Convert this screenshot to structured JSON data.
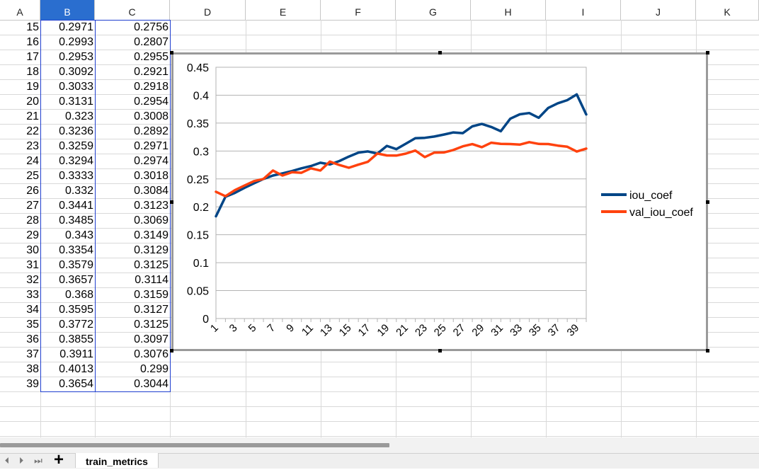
{
  "spreadsheet": {
    "columns": [
      "A",
      "B",
      "C",
      "D",
      "E",
      "F",
      "G",
      "H",
      "I",
      "J",
      "K"
    ],
    "selected_column": "B",
    "rows": [
      {
        "a": "15",
        "b": "0.2971",
        "c": "0.2756"
      },
      {
        "a": "16",
        "b": "0.2993",
        "c": "0.2807"
      },
      {
        "a": "17",
        "b": "0.2953",
        "c": "0.2955"
      },
      {
        "a": "18",
        "b": "0.3092",
        "c": "0.2921"
      },
      {
        "a": "19",
        "b": "0.3033",
        "c": "0.2918"
      },
      {
        "a": "20",
        "b": "0.3131",
        "c": "0.2954"
      },
      {
        "a": "21",
        "b": "0.323",
        "c": "0.3008"
      },
      {
        "a": "22",
        "b": "0.3236",
        "c": "0.2892"
      },
      {
        "a": "23",
        "b": "0.3259",
        "c": "0.2971"
      },
      {
        "a": "24",
        "b": "0.3294",
        "c": "0.2974"
      },
      {
        "a": "25",
        "b": "0.3333",
        "c": "0.3018"
      },
      {
        "a": "26",
        "b": "0.332",
        "c": "0.3084"
      },
      {
        "a": "27",
        "b": "0.3441",
        "c": "0.3123"
      },
      {
        "a": "28",
        "b": "0.3485",
        "c": "0.3069"
      },
      {
        "a": "29",
        "b": "0.343",
        "c": "0.3149"
      },
      {
        "a": "30",
        "b": "0.3354",
        "c": "0.3129"
      },
      {
        "a": "31",
        "b": "0.3579",
        "c": "0.3125"
      },
      {
        "a": "32",
        "b": "0.3657",
        "c": "0.3114"
      },
      {
        "a": "33",
        "b": "0.368",
        "c": "0.3159"
      },
      {
        "a": "34",
        "b": "0.3595",
        "c": "0.3127"
      },
      {
        "a": "35",
        "b": "0.3772",
        "c": "0.3125"
      },
      {
        "a": "36",
        "b": "0.3855",
        "c": "0.3097"
      },
      {
        "a": "37",
        "b": "0.3911",
        "c": "0.3076"
      },
      {
        "a": "38",
        "b": "0.4013",
        "c": "0.299"
      },
      {
        "a": "39",
        "b": "0.3654",
        "c": "0.3044"
      }
    ]
  },
  "sheet_tabs": {
    "active": "train_metrics",
    "add_label": "+",
    "nav_first": "⏴",
    "nav_prev": "⏵",
    "nav_last": "⏭"
  },
  "colors": {
    "selected_header": "#2a6ecf",
    "selection_border": "#1f3fcf",
    "iou_coef": "#004586",
    "val_iou_coef": "#ff420e"
  },
  "chart_data": {
    "type": "line",
    "x": [
      1,
      2,
      3,
      4,
      5,
      6,
      7,
      8,
      9,
      10,
      11,
      12,
      13,
      14,
      15,
      16,
      17,
      18,
      19,
      20,
      21,
      22,
      23,
      24,
      25,
      26,
      27,
      28,
      29,
      30,
      31,
      32,
      33,
      34,
      35,
      36,
      37,
      38,
      39,
      40
    ],
    "x_tick_labels": [
      "1",
      "3",
      "5",
      "7",
      "9",
      "11",
      "13",
      "15",
      "17",
      "19",
      "21",
      "23",
      "25",
      "27",
      "29",
      "31",
      "33",
      "35",
      "37",
      "39"
    ],
    "y_tick_labels": [
      "0",
      "0.05",
      "0.1",
      "0.15",
      "0.2",
      "0.25",
      "0.3",
      "0.35",
      "0.4",
      "0.45"
    ],
    "ylim": [
      0,
      0.45
    ],
    "grid": true,
    "legend_position": "right",
    "series": [
      {
        "name": "iou_coef",
        "color": "#004586",
        "values": [
          0.183,
          0.218,
          0.225,
          0.234,
          0.242,
          0.25,
          0.256,
          0.26,
          0.264,
          0.269,
          0.273,
          0.279,
          0.276,
          0.282,
          0.29,
          0.2971,
          0.2993,
          0.2953,
          0.3092,
          0.3033,
          0.3131,
          0.323,
          0.3236,
          0.3259,
          0.3294,
          0.3333,
          0.332,
          0.3441,
          0.3485,
          0.343,
          0.3354,
          0.3579,
          0.3657,
          0.368,
          0.3595,
          0.3772,
          0.3855,
          0.3911,
          0.4013,
          0.3654
        ]
      },
      {
        "name": "val_iou_coef",
        "color": "#ff420e",
        "values": [
          0.227,
          0.219,
          0.23,
          0.238,
          0.246,
          0.25,
          0.265,
          0.256,
          0.262,
          0.261,
          0.269,
          0.265,
          0.281,
          0.275,
          0.27,
          0.2756,
          0.2807,
          0.2955,
          0.2921,
          0.2918,
          0.2954,
          0.3008,
          0.2892,
          0.2971,
          0.2974,
          0.3018,
          0.3084,
          0.3123,
          0.3069,
          0.3149,
          0.3129,
          0.3125,
          0.3114,
          0.3159,
          0.3127,
          0.3125,
          0.3097,
          0.3076,
          0.299,
          0.3044
        ]
      }
    ]
  }
}
